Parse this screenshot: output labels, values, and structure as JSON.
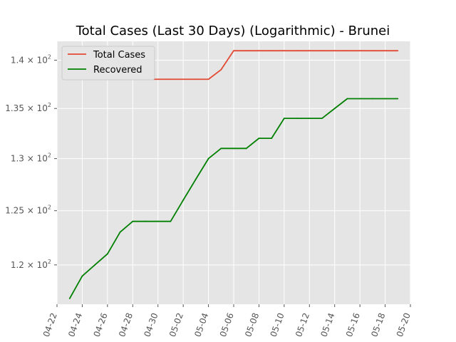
{
  "chart_data": {
    "type": "line",
    "title": "Total Cases (Last 30 Days) (Logarithmic) - Brunei",
    "y_scale": "log",
    "grid": true,
    "legend_position": "top-left",
    "colors": {
      "background": "#E5E5E5",
      "grid": "#FFFFFF",
      "tick_text": "#555555"
    },
    "xlim": [
      "2020-04-22",
      "2020-05-20"
    ],
    "ylim": [
      116.5,
      142.0
    ],
    "x_ticks": [
      {
        "date": "2020-04-22",
        "label": "04-22"
      },
      {
        "date": "2020-04-24",
        "label": "04-24"
      },
      {
        "date": "2020-04-26",
        "label": "04-26"
      },
      {
        "date": "2020-04-28",
        "label": "04-28"
      },
      {
        "date": "2020-04-30",
        "label": "04-30"
      },
      {
        "date": "2020-05-02",
        "label": "05-02"
      },
      {
        "date": "2020-05-04",
        "label": "05-04"
      },
      {
        "date": "2020-05-06",
        "label": "05-06"
      },
      {
        "date": "2020-05-08",
        "label": "05-08"
      },
      {
        "date": "2020-05-10",
        "label": "05-10"
      },
      {
        "date": "2020-05-12",
        "label": "05-12"
      },
      {
        "date": "2020-05-14",
        "label": "05-14"
      },
      {
        "date": "2020-05-16",
        "label": "05-16"
      },
      {
        "date": "2020-05-18",
        "label": "05-18"
      },
      {
        "date": "2020-05-20",
        "label": "05-20"
      }
    ],
    "y_ticks": [
      {
        "value": 120,
        "mantissa": "1.2",
        "exp": "2"
      },
      {
        "value": 125,
        "mantissa": "1.25",
        "exp": "2"
      },
      {
        "value": 130,
        "mantissa": "1.3",
        "exp": "2"
      },
      {
        "value": 135,
        "mantissa": "1.35",
        "exp": "2"
      },
      {
        "value": 140,
        "mantissa": "1.4",
        "exp": "2"
      }
    ],
    "x": [
      "2020-04-23",
      "2020-04-24",
      "2020-04-25",
      "2020-04-26",
      "2020-04-27",
      "2020-04-28",
      "2020-04-29",
      "2020-04-30",
      "2020-05-01",
      "2020-05-02",
      "2020-05-03",
      "2020-05-04",
      "2020-05-05",
      "2020-05-06",
      "2020-05-07",
      "2020-05-08",
      "2020-05-09",
      "2020-05-10",
      "2020-05-11",
      "2020-05-12",
      "2020-05-13",
      "2020-05-14",
      "2020-05-15",
      "2020-05-16",
      "2020-05-17",
      "2020-05-18",
      "2020-05-19"
    ],
    "series": [
      {
        "name": "Total Cases",
        "color": "#E24A33",
        "values": [
          138,
          138,
          138,
          138,
          138,
          138,
          138,
          138,
          138,
          138,
          138,
          138,
          139,
          141,
          141,
          141,
          141,
          141,
          141,
          141,
          141,
          141,
          141,
          141,
          141,
          141,
          141
        ]
      },
      {
        "name": "Recovered",
        "color": "#008000",
        "values": [
          117,
          119,
          120,
          121,
          123,
          124,
          124,
          124,
          124,
          126,
          128,
          130,
          131,
          131,
          131,
          132,
          132,
          134,
          134,
          134,
          134,
          135,
          136,
          136,
          136,
          136,
          136
        ]
      }
    ]
  }
}
